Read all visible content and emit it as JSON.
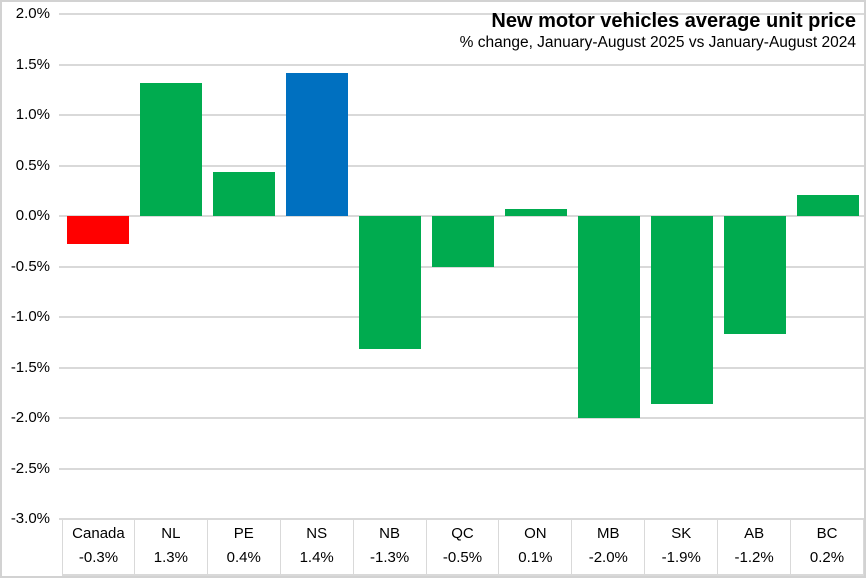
{
  "title": "New motor vehicles average unit price",
  "subtitle": "% change, January-August 2025 vs January-August 2024",
  "chart_data": {
    "type": "bar",
    "title": "New motor vehicles average unit price",
    "subtitle": "% change, January-August 2025 vs January-August 2024",
    "categories": [
      "Canada",
      "NL",
      "PE",
      "NS",
      "NB",
      "QC",
      "ON",
      "MB",
      "SK",
      "AB",
      "BC"
    ],
    "values": [
      -0.28,
      1.32,
      0.44,
      1.42,
      -1.32,
      -0.5,
      0.07,
      -2.0,
      -1.86,
      -1.17,
      0.21
    ],
    "value_labels": [
      "-0.3%",
      "1.3%",
      "0.4%",
      "1.4%",
      "-1.3%",
      "-0.5%",
      "0.1%",
      "-2.0%",
      "-1.9%",
      "-1.2%",
      "0.2%"
    ],
    "ylim": [
      -3.0,
      2.0
    ],
    "ytick_step": 0.5,
    "yticks": [
      {
        "value": 2.0,
        "label": "2.0%"
      },
      {
        "value": 1.5,
        "label": "1.5%"
      },
      {
        "value": 1.0,
        "label": "1.0%"
      },
      {
        "value": 0.5,
        "label": "0.5%"
      },
      {
        "value": 0.0,
        "label": "0.0%"
      },
      {
        "value": -0.5,
        "label": "-0.5%"
      },
      {
        "value": -1.0,
        "label": "-1.0%"
      },
      {
        "value": -1.5,
        "label": "-1.5%"
      },
      {
        "value": -2.0,
        "label": "-2.0%"
      },
      {
        "value": -2.5,
        "label": "-2.5%"
      },
      {
        "value": -3.0,
        "label": "-3.0%"
      }
    ],
    "grid": true,
    "legend": "none",
    "data_table_shown": true,
    "colors": {
      "default": "#00AB4F",
      "Canada": "#FF0000",
      "NS": "#0070C0"
    },
    "gridline_color": "#D9D9D9",
    "background_color": "#FFFFFF",
    "text_color": "#000000"
  }
}
